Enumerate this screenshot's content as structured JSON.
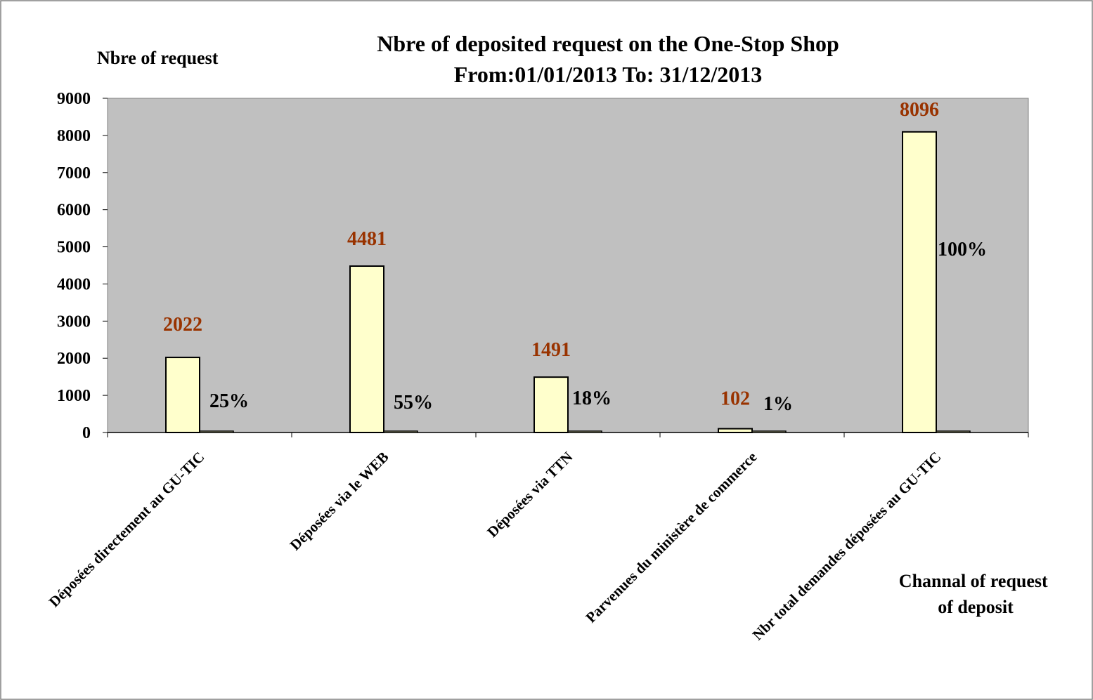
{
  "chart_data": {
    "type": "bar",
    "title": "Nbre of deposited request on the One-Stop Shop",
    "subtitle": "From:01/01/2013 To: 31/12/2013",
    "ylabel": "Nbre of request",
    "xlabel_lines": [
      "Channal of request",
      "of deposit"
    ],
    "ylim": [
      0,
      9000
    ],
    "yticks": [
      0,
      1000,
      2000,
      3000,
      4000,
      5000,
      6000,
      7000,
      8000,
      9000
    ],
    "grid": false,
    "categories": [
      "Déposées directement au GU-TIC",
      "Déposées via le WEB",
      "Déposées via TTN",
      "Parvenues du ministère de commerce",
      "Nbr total demandes déposées au GU-TIC"
    ],
    "series": [
      {
        "values": [
          2022,
          4481,
          1491,
          102,
          8096
        ],
        "value_labels": [
          "2022",
          "4481",
          "1491",
          "102",
          "8096"
        ]
      },
      {
        "values": [
          0.25,
          0.55,
          0.18,
          0.01,
          1.0
        ],
        "value_labels": [
          "25%",
          "55%",
          "18%",
          "1%",
          "100%"
        ]
      }
    ],
    "colors": {
      "plot_background": "#c0c0c0",
      "bar_fill": "#ffffcc",
      "bar_stroke": "#000000",
      "value_label": "#993300",
      "percent_label": "#000000"
    }
  }
}
